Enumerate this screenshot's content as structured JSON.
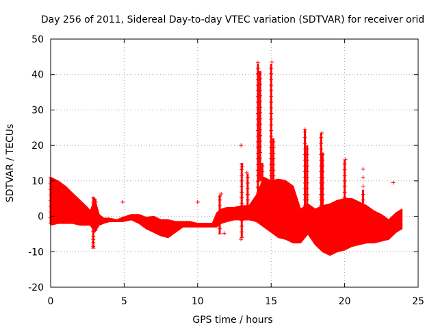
{
  "chart_data": {
    "type": "scatter",
    "title": "Day 256 of 2011, Sidereal Day-to-day VTEC variation (SDTVAR) for receiver orid",
    "xlabel": "GPS time / hours",
    "ylabel": "SDTVAR / TECUs",
    "xlim": [
      0,
      25
    ],
    "ylim": [
      -20,
      50
    ],
    "xticks": [
      0,
      5,
      10,
      15,
      20,
      25
    ],
    "yticks": [
      -20,
      -10,
      0,
      10,
      20,
      30,
      40,
      50
    ],
    "xtick_labels": [
      "0",
      "5",
      "10",
      "15",
      "20",
      "25"
    ],
    "ytick_labels": [
      "-20",
      "-10",
      "0",
      "10",
      "20",
      "30",
      "40",
      "50"
    ],
    "grid": true,
    "marker": "+",
    "color": "#ff0000",
    "envelope": {
      "x": [
        0.0,
        0.5,
        1.0,
        1.5,
        2.0,
        2.5,
        2.7,
        3.0,
        3.3,
        3.6,
        4.0,
        4.5,
        4.9,
        5.5,
        6.0,
        6.5,
        7.0,
        7.5,
        8.0,
        8.5,
        9.0,
        9.5,
        10.0,
        10.5,
        11.0,
        11.3,
        11.6,
        12.0,
        12.5,
        13.0,
        13.5,
        14.0,
        14.5,
        15.0,
        15.5,
        16.0,
        16.5,
        17.0,
        17.5,
        18.0,
        18.5,
        19.0,
        19.5,
        20.0,
        20.5,
        21.0,
        21.5,
        22.0,
        22.5,
        23.0,
        23.5,
        23.9
      ],
      "upper": [
        11.0,
        10.0,
        8.5,
        6.5,
        4.5,
        2.5,
        1.5,
        5.0,
        0.5,
        -0.5,
        -0.5,
        -1.0,
        -0.3,
        0.5,
        0.5,
        -0.3,
        0.0,
        -1.0,
        -1.0,
        -1.5,
        -1.5,
        -1.5,
        -2.0,
        -2.0,
        -2.0,
        1.0,
        2.0,
        2.5,
        2.5,
        3.0,
        3.0,
        6.0,
        11.0,
        10.0,
        10.5,
        10.0,
        8.5,
        2.0,
        3.5,
        2.0,
        3.0,
        3.5,
        4.5,
        5.0,
        5.0,
        4.0,
        3.0,
        1.5,
        0.5,
        -1.0,
        1.0,
        2.0
      ],
      "lower": [
        -2.5,
        -2.0,
        -2.0,
        -2.0,
        -2.5,
        -2.5,
        -2.5,
        -4.5,
        -2.5,
        -2.0,
        -1.5,
        -1.5,
        -1.5,
        -1.0,
        -2.0,
        -3.5,
        -4.5,
        -5.5,
        -6.0,
        -4.5,
        -3.0,
        -3.0,
        -3.0,
        -3.0,
        -3.0,
        -3.0,
        -2.0,
        -1.5,
        -1.0,
        -1.0,
        -1.0,
        -1.5,
        -3.0,
        -4.5,
        -6.0,
        -6.5,
        -7.5,
        -7.5,
        -5.0,
        -8.0,
        -10.0,
        -11.0,
        -10.0,
        -9.5,
        -8.5,
        -8.0,
        -7.5,
        -7.5,
        -7.0,
        -6.5,
        -4.5,
        -3.5
      ]
    },
    "spikes": [
      {
        "x": 0.0,
        "y0": -2.0,
        "y1": 11.0
      },
      {
        "x": 2.9,
        "y0": -9.0,
        "y1": 5.5
      },
      {
        "x": 3.05,
        "y0": -4.0,
        "y1": 5.0
      },
      {
        "x": 11.5,
        "y0": -5.0,
        "y1": 6.0
      },
      {
        "x": 13.0,
        "y0": -6.0,
        "y1": 15.0
      },
      {
        "x": 13.4,
        "y0": 3.0,
        "y1": 12.0
      },
      {
        "x": 14.1,
        "y0": 5.0,
        "y1": 43.0
      },
      {
        "x": 14.25,
        "y0": 10.0,
        "y1": 41.0
      },
      {
        "x": 14.4,
        "y0": 3.0,
        "y1": 15.0
      },
      {
        "x": 15.0,
        "y0": 5.0,
        "y1": 43.0
      },
      {
        "x": 15.15,
        "y0": 5.0,
        "y1": 22.0
      },
      {
        "x": 17.3,
        "y0": 3.0,
        "y1": 24.5
      },
      {
        "x": 17.45,
        "y0": 3.0,
        "y1": 20.0
      },
      {
        "x": 18.4,
        "y0": 3.0,
        "y1": 23.5
      },
      {
        "x": 18.5,
        "y0": 3.0,
        "y1": 18.0
      },
      {
        "x": 20.0,
        "y0": 2.0,
        "y1": 16.0
      },
      {
        "x": 21.25,
        "y0": 3.0,
        "y1": 7.5
      }
    ],
    "points": [
      {
        "x": 2.9,
        "y": -8.5
      },
      {
        "x": 4.9,
        "y": 4.0
      },
      {
        "x": 10.0,
        "y": 4.0
      },
      {
        "x": 11.5,
        "y": 5.5
      },
      {
        "x": 11.6,
        "y": 6.3
      },
      {
        "x": 11.8,
        "y": -4.8
      },
      {
        "x": 12.95,
        "y": 20.0
      },
      {
        "x": 12.95,
        "y": -6.5
      },
      {
        "x": 13.05,
        "y": 14.0
      },
      {
        "x": 21.25,
        "y": 13.3
      },
      {
        "x": 21.25,
        "y": 11.0
      },
      {
        "x": 21.25,
        "y": 8.5
      },
      {
        "x": 23.3,
        "y": 9.5
      },
      {
        "x": 17.3,
        "y": 24.5
      },
      {
        "x": 18.45,
        "y": 23.5
      },
      {
        "x": 15.05,
        "y": 43.5
      },
      {
        "x": 14.1,
        "y": 43.3
      },
      {
        "x": 20.05,
        "y": 16.0
      },
      {
        "x": 13.35,
        "y": 12.3
      },
      {
        "x": 2.9,
        "y": -6.5
      },
      {
        "x": 0.05,
        "y": 4.5
      }
    ]
  }
}
